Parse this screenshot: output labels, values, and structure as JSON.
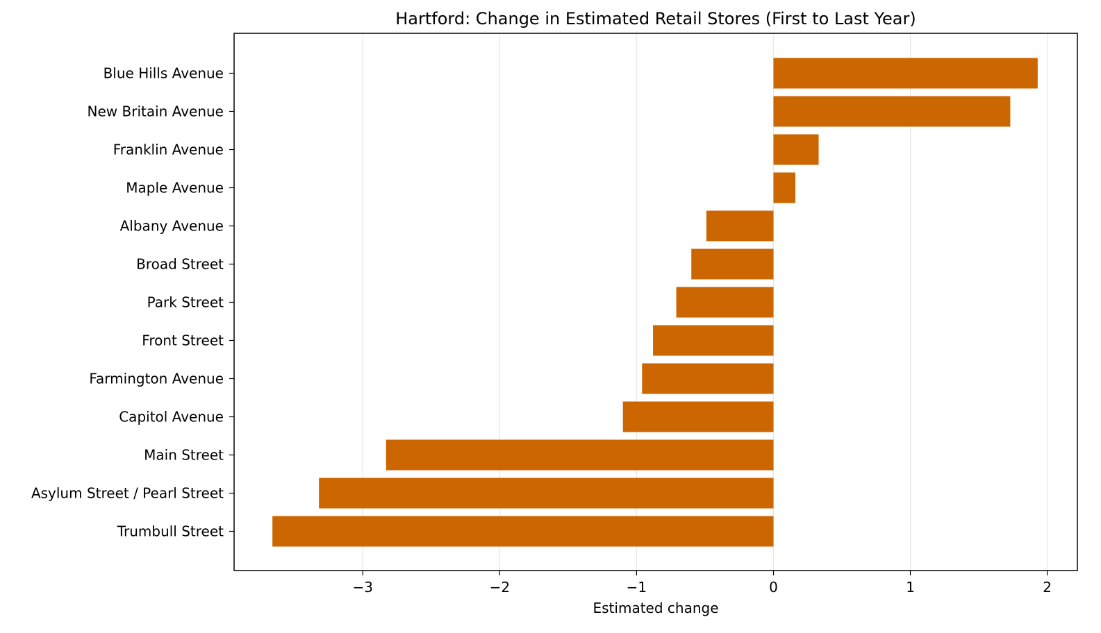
{
  "chart_data": {
    "type": "bar",
    "orientation": "horizontal",
    "title": "Hartford: Change in Estimated Retail Stores (First to Last Year)",
    "xlabel": "Estimated change",
    "ylabel": "",
    "categories": [
      "Blue Hills Avenue",
      "New Britain Avenue",
      "Franklin Avenue",
      "Maple Avenue",
      "Albany Avenue",
      "Broad Street",
      "Park Street",
      "Front Street",
      "Farmington Avenue",
      "Capitol Avenue",
      "Main Street",
      "Asylum Street / Pearl Street",
      "Trumbull Street"
    ],
    "values": [
      1.93,
      1.73,
      0.33,
      0.16,
      -0.49,
      -0.6,
      -0.71,
      -0.88,
      -0.96,
      -1.1,
      -2.83,
      -3.32,
      -3.66
    ],
    "xlim": [
      -3.94,
      2.22
    ],
    "xticks": [
      -3,
      -2,
      -1,
      0,
      1,
      2
    ],
    "xtick_labels": [
      "−3",
      "−2",
      "−1",
      "0",
      "1",
      "2"
    ],
    "grid": {
      "x": true,
      "y": false
    },
    "bar_color": "#cc6600",
    "grid_color": "#e6e6e6"
  }
}
